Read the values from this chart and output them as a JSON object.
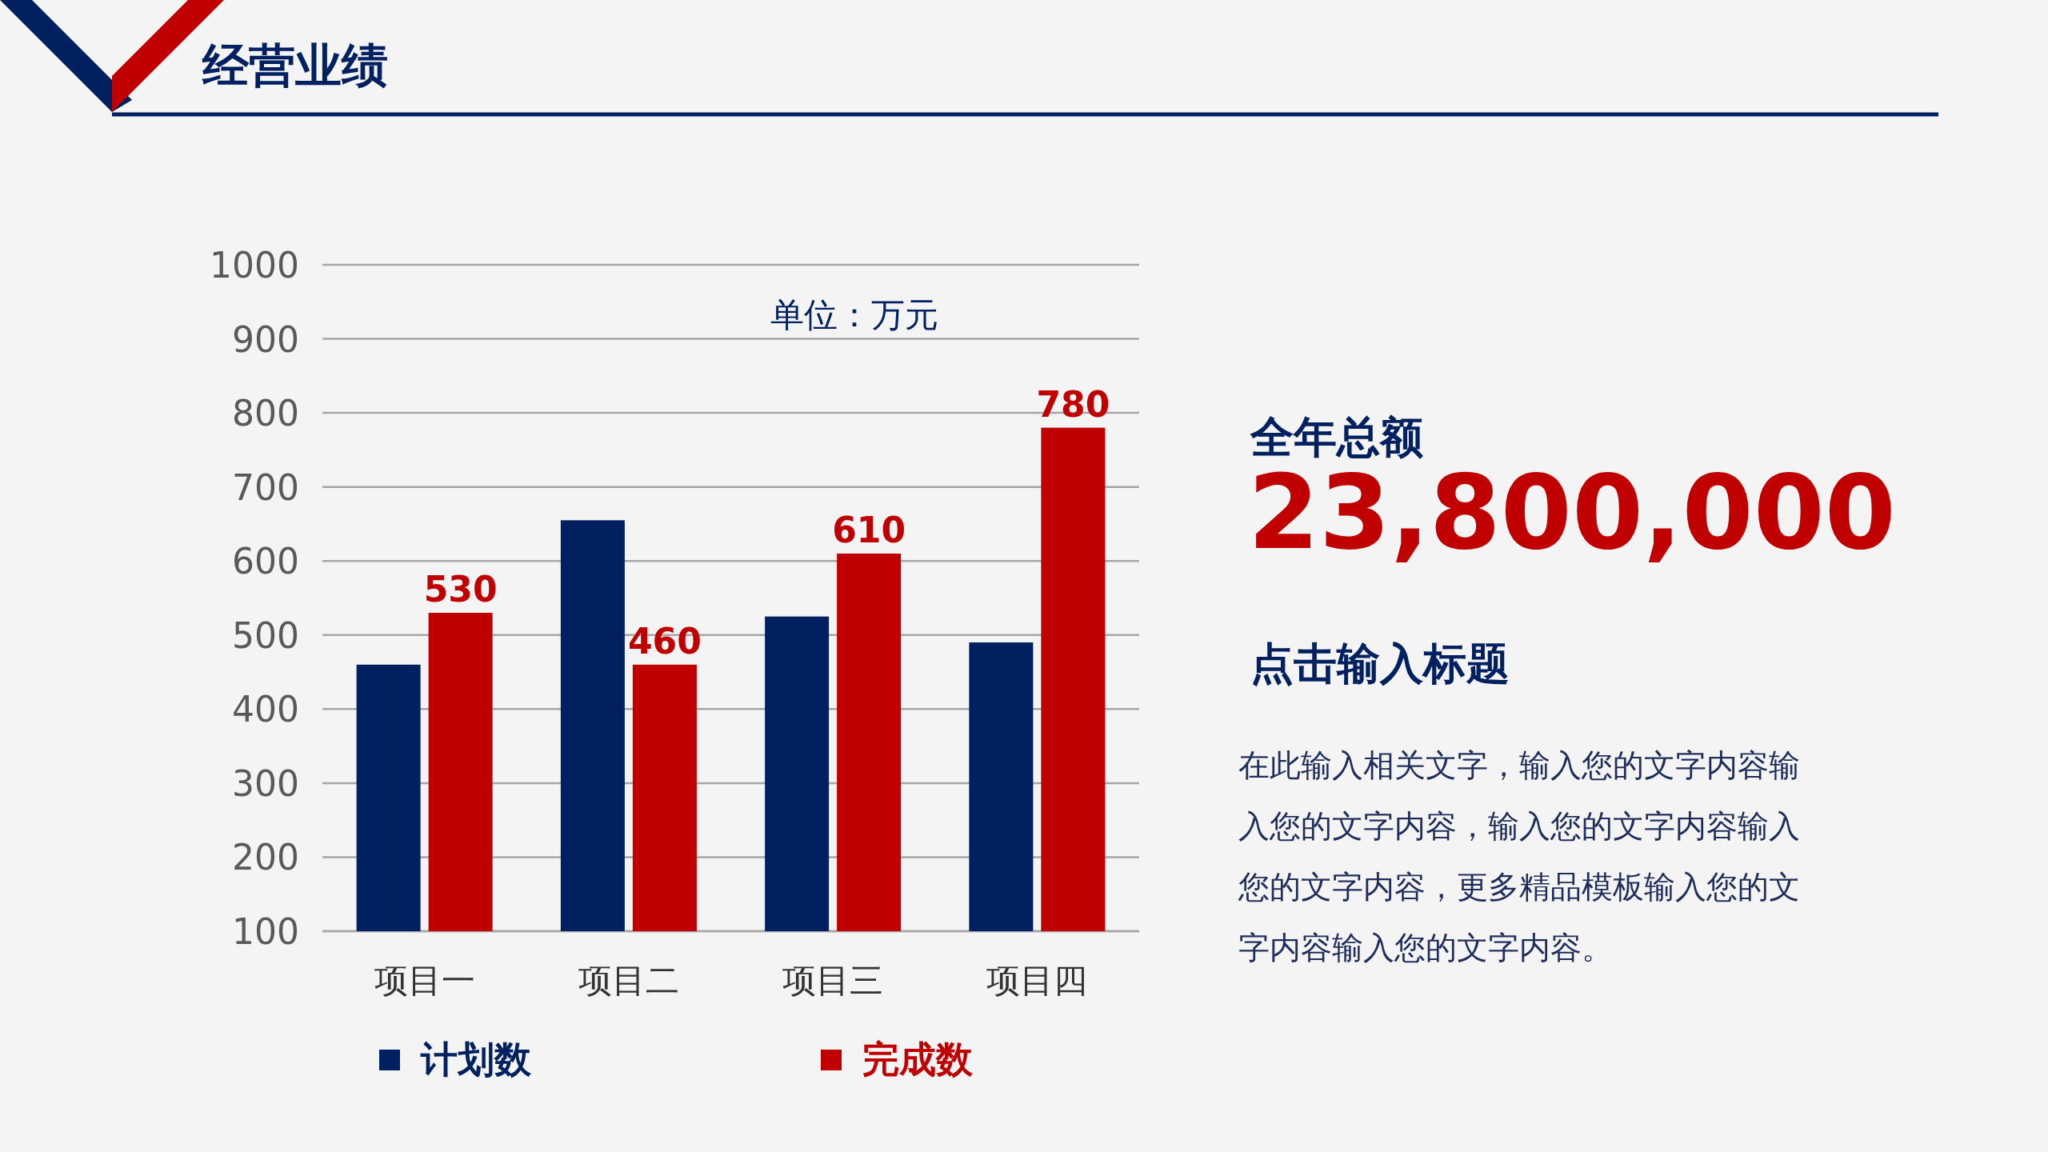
{
  "chart_data": {
    "type": "bar",
    "title": "经营业绩",
    "categories": [
      "项目一",
      "项目二",
      "项目三",
      "项目四"
    ],
    "series": [
      {
        "name": "计划数",
        "color": "#002060",
        "values": [
          460,
          655,
          525,
          490
        ]
      },
      {
        "name": "完成数",
        "color": "#c00000",
        "values": [
          530,
          460,
          610,
          780
        ],
        "value_labels": [
          "530",
          "460",
          "610",
          "780"
        ]
      }
    ],
    "ylim": [
      100,
      1000
    ],
    "yticks": [
      100,
      200,
      300,
      400,
      500,
      600,
      700,
      800,
      900,
      1000
    ],
    "grid": "y",
    "legend": "bottom",
    "annotations": [
      "单位：万元",
      "全年总额",
      "23,800,000",
      "点击输入标题",
      "在此输入相关文字，输入您的文字内容输入您的文字内容，输入您的文字内容输入您的文字内容，更多精品模板输入您的文字内容输入您的文字内容。"
    ]
  }
}
